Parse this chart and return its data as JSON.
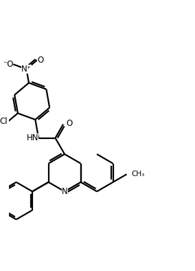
{
  "bg_color": "#ffffff",
  "line_color": "#000000",
  "line_width": 1.6,
  "font_size": 8.5,
  "figsize": [
    2.84,
    3.94
  ],
  "dpi": 100,
  "xlim": [
    -2.5,
    7.5
  ],
  "ylim": [
    -4.5,
    5.5
  ]
}
